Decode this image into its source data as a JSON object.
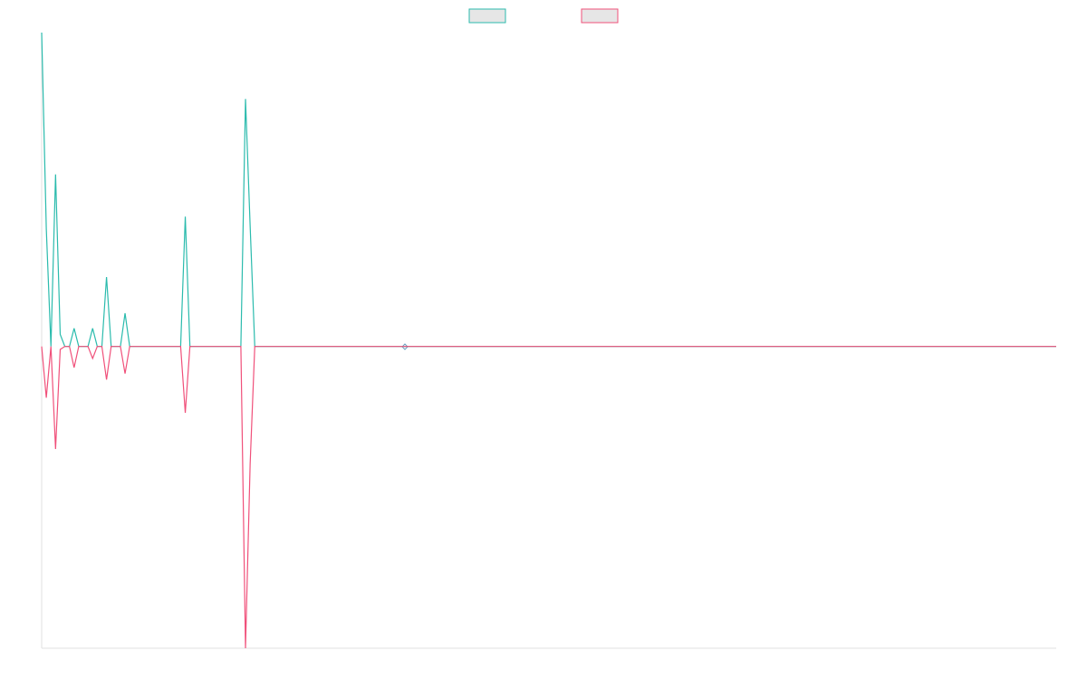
{
  "chart_data": {
    "type": "line",
    "x": [
      0,
      1,
      2,
      3,
      4,
      5,
      6,
      7,
      8,
      9,
      10,
      11,
      12,
      13,
      14,
      15,
      16,
      17,
      18,
      19,
      20,
      21,
      22,
      23,
      24,
      25,
      26,
      27,
      28,
      29,
      30,
      31,
      32,
      33,
      34,
      35,
      36,
      37,
      38,
      39,
      40,
      41,
      42,
      43,
      44,
      45,
      46,
      219
    ],
    "xlim": [
      0,
      219
    ],
    "ylim": [
      -100,
      104
    ],
    "legend": "top",
    "series": [
      {
        "color": "#2bbbad",
        "values": [
          104,
          39,
          0,
          57,
          4,
          0,
          0,
          6,
          0,
          0,
          0,
          6,
          0,
          0,
          23,
          0,
          0,
          0,
          11,
          0,
          0,
          0,
          0,
          0,
          0,
          0,
          0,
          0,
          0,
          0,
          0,
          43,
          0,
          0,
          0,
          0,
          0,
          0,
          0,
          0,
          0,
          0,
          0,
          0,
          82,
          40,
          0,
          0
        ]
      },
      {
        "color": "#f0507a",
        "values": [
          0,
          -17,
          0,
          -34,
          -1,
          0,
          0,
          -7,
          0,
          0,
          0,
          -4,
          0,
          0,
          -11,
          0,
          0,
          0,
          -9,
          0,
          0,
          0,
          0,
          0,
          0,
          0,
          0,
          0,
          0,
          0,
          0,
          -22,
          0,
          0,
          0,
          0,
          0,
          0,
          0,
          0,
          0,
          0,
          0,
          0,
          -100,
          -39,
          0,
          0
        ]
      }
    ]
  }
}
